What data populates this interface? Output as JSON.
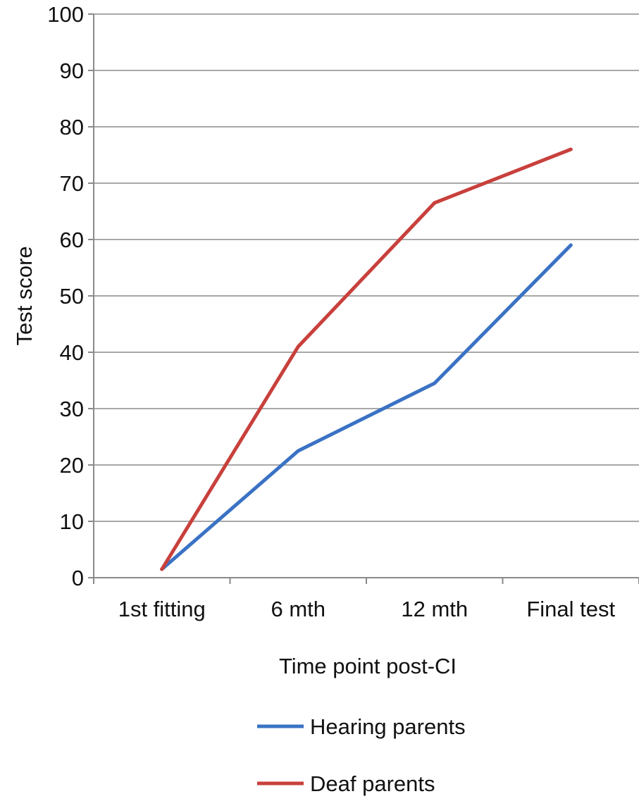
{
  "chart_data": {
    "type": "line",
    "categories": [
      "1st fitting",
      "6 mth",
      "12 mth",
      "Final test"
    ],
    "series": [
      {
        "name": "Hearing parents",
        "color": "#3a72c4",
        "values": [
          1.5,
          22.5,
          34.5,
          59
        ]
      },
      {
        "name": "Deaf parents",
        "color": "#c8403c",
        "values": [
          1.5,
          41,
          66.5,
          76
        ]
      }
    ],
    "title": "",
    "xlabel": "Time point post-CI",
    "ylabel": "Test score",
    "ylim": [
      0,
      100
    ],
    "yticks": [
      0,
      10,
      20,
      30,
      40,
      50,
      60,
      70,
      80,
      90,
      100
    ],
    "grid": "horizontal",
    "legend_position": "bottom"
  }
}
